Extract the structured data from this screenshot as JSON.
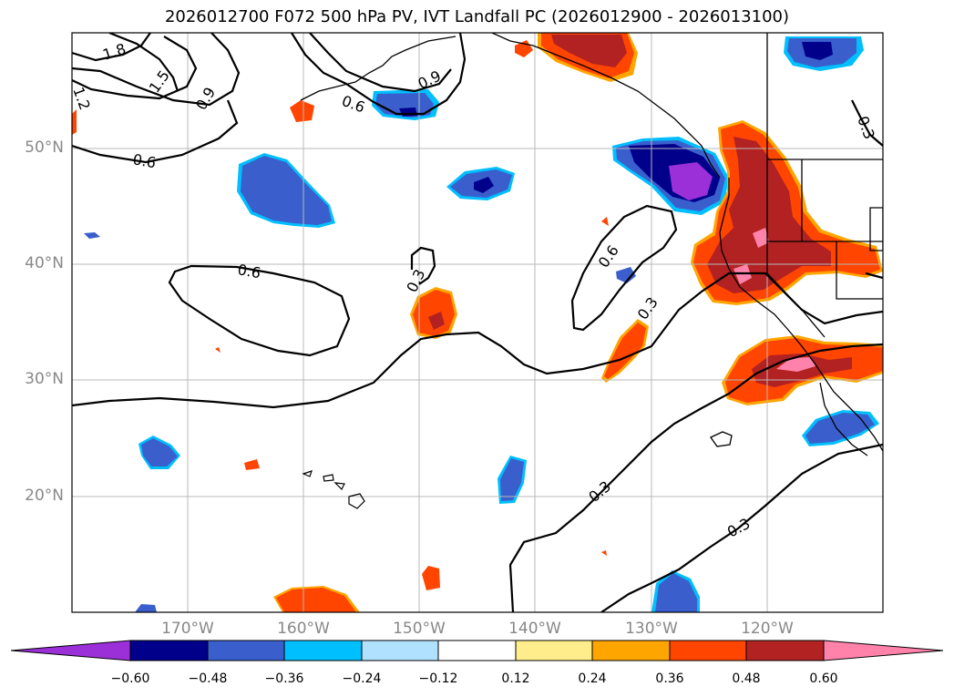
{
  "title": "2026012700 F072 500 hPa PV, IVT Landfall PC (2026012900 - 2026013100)",
  "map": {
    "lon_range": [
      -180,
      -110
    ],
    "lat_range": [
      10,
      60
    ],
    "lat_ticks": [
      "50°N",
      "40°N",
      "30°N",
      "20°N"
    ],
    "lon_ticks": [
      "170°W",
      "160°W",
      "150°W",
      "140°W",
      "130°W",
      "120°W"
    ],
    "contour_labels": [
      "1.8",
      "1.5",
      "1.2",
      "0.9",
      "0.9",
      "0.6",
      "0.6",
      "0.6",
      "0.6",
      "0.3",
      "0.3",
      "0.3",
      "0.3",
      "0.3",
      "0.3"
    ],
    "colors": {
      "neg_deep": "#9b30d9",
      "neg_navy": "#00008b",
      "neg_blue": "#3a5fcd",
      "neg_cyan": "#00bfff",
      "neg_light": "#b0e2ff",
      "pos_yellow": "#ffec8b",
      "pos_orange": "#ffa500",
      "pos_redorange": "#ff4500",
      "pos_firebrick": "#b22222",
      "pos_pink": "#ff82ab"
    }
  },
  "colorbar": {
    "tick_labels": [
      "−0.60",
      "−0.48",
      "−0.36",
      "−0.24",
      "−0.12",
      "0.12",
      "0.24",
      "0.36",
      "0.48",
      "0.60"
    ],
    "colors": [
      "#9b30d9",
      "#00008b",
      "#3a5fcd",
      "#00bfff",
      "#b0e2ff",
      "#ffffff",
      "#ffec8b",
      "#ffa500",
      "#ff4500",
      "#b22222",
      "#ff82ab"
    ]
  }
}
